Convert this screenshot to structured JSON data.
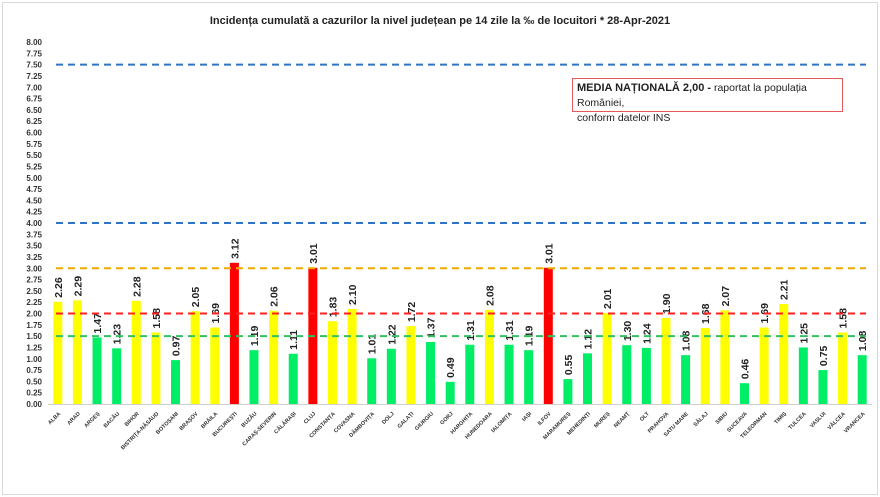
{
  "chart_data": {
    "type": "bar",
    "title": "Incidența cumulată a cazurilor la nivel județean pe 14 zile  la ‰ de locuitori  *  28-Apr-2021",
    "xlabel": "",
    "ylabel": "",
    "ylim": [
      0,
      8
    ],
    "yticks": [
      "0.00",
      "0.25",
      "0.50",
      "0.75",
      "1.00",
      "1.25",
      "1.50",
      "1.75",
      "2.00",
      "2.25",
      "2.50",
      "2.75",
      "3.00",
      "3.25",
      "3.50",
      "3.75",
      "4.00",
      "4.25",
      "4.50",
      "4.75",
      "5.00",
      "5.25",
      "5.50",
      "5.75",
      "6.00",
      "6.25",
      "6.50",
      "6.75",
      "7.00",
      "7.25",
      "7.50",
      "7.75",
      "8.00"
    ],
    "grid": false,
    "categories": [
      "ALBA",
      "ARAD",
      "ARGEȘ",
      "BACĂU",
      "BIHOR",
      "BISTRIȚA-NĂSĂUD",
      "BOTOȘANI",
      "BRAȘOV",
      "BRĂILA",
      "BUCUREȘTI",
      "BUZĂU",
      "CARAȘ-SEVERIN",
      "CĂLĂRAȘI",
      "CLUJ",
      "CONSTANȚA",
      "COVASNA",
      "DÂMBOVIȚA",
      "DOLJ",
      "GALAȚI",
      "GIURGIU",
      "GORJ",
      "HARGHITA",
      "HUNEDOARA",
      "IALOMIȚA",
      "IAȘI",
      "ILFOV",
      "MARAMUREȘ",
      "MEHEDINȚI",
      "MUREȘ",
      "NEAMȚ",
      "OLT",
      "PRAHOVA",
      "SATU MARE",
      "SĂLAJ",
      "SIBIU",
      "SUCEAVA",
      "TELEORMAN",
      "TIMIȘ",
      "TULCEA",
      "VASLUI",
      "VÂLCEA",
      "VRANCEA"
    ],
    "values": [
      2.26,
      2.29,
      1.47,
      1.23,
      2.28,
      1.58,
      0.97,
      2.05,
      1.69,
      3.12,
      1.19,
      2.06,
      1.11,
      3.01,
      1.83,
      2.1,
      1.01,
      1.22,
      1.72,
      1.37,
      0.49,
      1.31,
      2.08,
      1.31,
      1.19,
      3.01,
      0.55,
      1.12,
      2.01,
      1.3,
      1.24,
      1.9,
      1.08,
      1.68,
      2.07,
      0.46,
      1.69,
      2.21,
      1.25,
      0.75,
      1.58,
      1.08
    ],
    "color_rules": [
      {
        "min": 3.0,
        "color": "#ff0000"
      },
      {
        "min": 1.5,
        "color": "#ffff00"
      },
      {
        "min": 0,
        "color": "#00ee66"
      }
    ],
    "reference_lines": [
      {
        "value": 1.5,
        "color": "#33c060"
      },
      {
        "value": 2.0,
        "color": "#ff2020"
      },
      {
        "value": 3.0,
        "color": "#f0a800"
      },
      {
        "value": 4.0,
        "color": "#2e75c8"
      },
      {
        "value": 7.5,
        "color": "#2e75c8"
      }
    ],
    "annotation": {
      "bold": "MEDIA NAȚIONALĂ 2,00 -",
      "text": " raportat la populația României,",
      "line2": "conform datelor INS",
      "border_color": "#e8585a"
    }
  }
}
